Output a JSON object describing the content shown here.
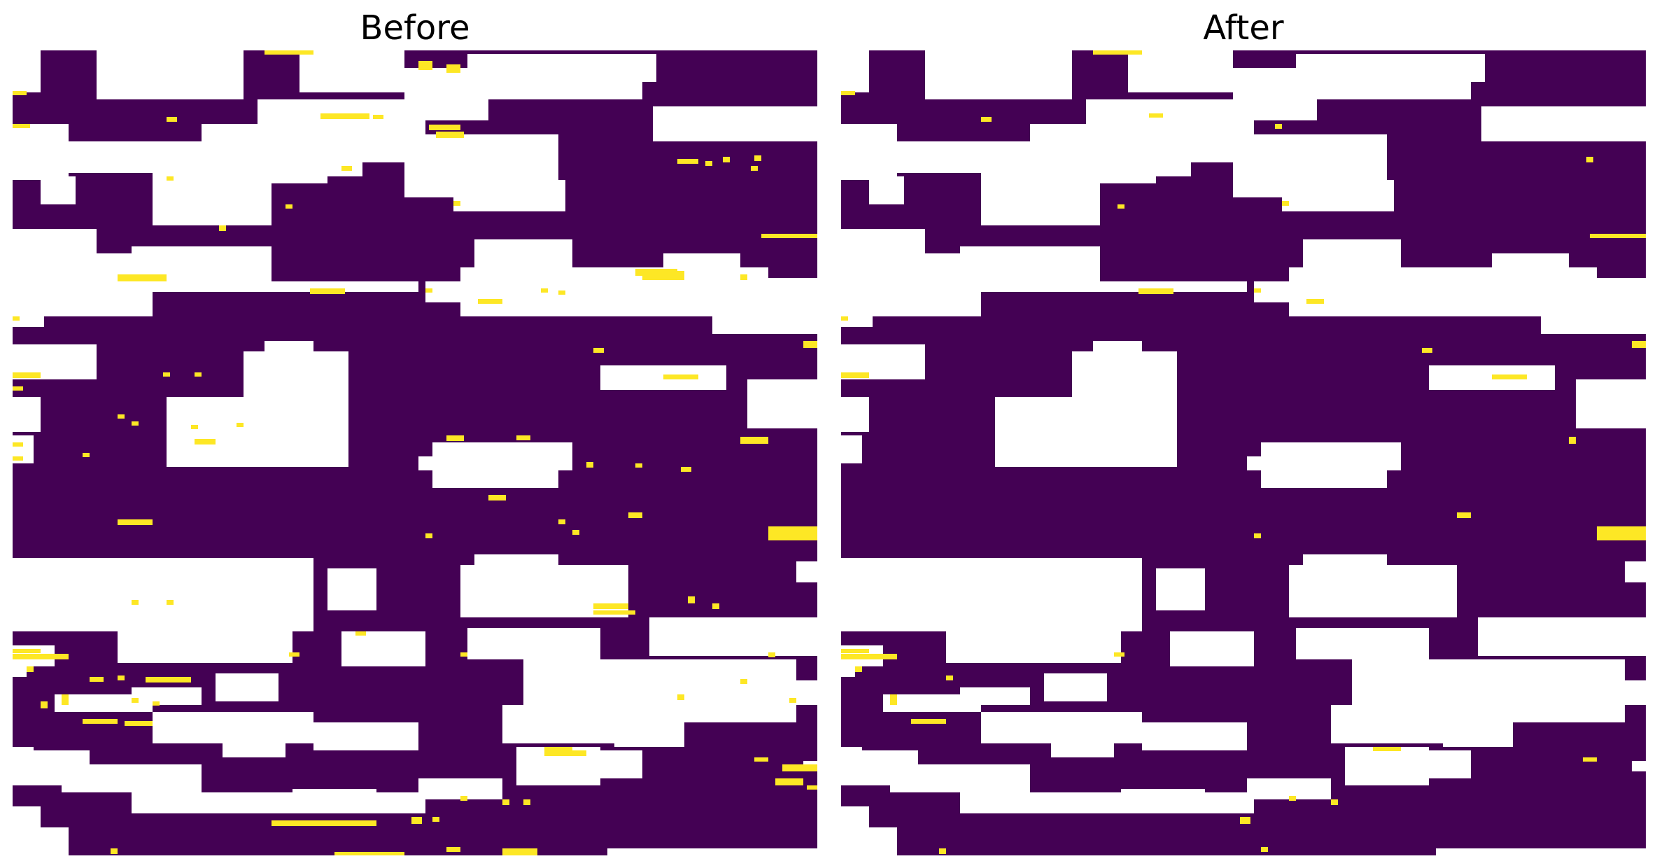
{
  "panels": [
    {
      "title": "Before"
    },
    {
      "title": "After"
    }
  ],
  "colors": {
    "pore": "#440154",
    "solid": "#ffffff",
    "isolated_cluster": "#fde725"
  }
}
